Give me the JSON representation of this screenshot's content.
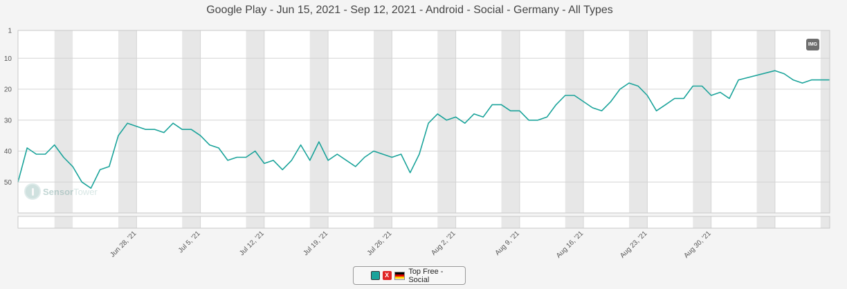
{
  "header": {
    "subtitle": "Google Play - Jun 15, 2021 - Sep 12, 2021 - Android - Social - Germany - All Types"
  },
  "toolbar": {
    "img_label": "IMG"
  },
  "watermark": {
    "brand_a": "Sensor",
    "brand_b": "Tower"
  },
  "legend": {
    "label": "Top Free - Social",
    "remove_label": "X",
    "swatch_color": "#1aa39a"
  },
  "colors": {
    "line": "#1aa39a",
    "grid": "#d4d4d4",
    "band": "#e7e7e7",
    "flag": [
      "#000000",
      "#dd0000",
      "#ffce00"
    ]
  },
  "chart_data": {
    "type": "line",
    "xlabel": "",
    "ylabel": "",
    "y_inverted": true,
    "ylim": [
      1,
      60
    ],
    "yticks": [
      1,
      10,
      20,
      30,
      40,
      50
    ],
    "x_start": "2021-06-15",
    "x_end": "2021-09-12",
    "x_ticks": [
      {
        "date": "2021-06-28",
        "label": "Jun 28, '21"
      },
      {
        "date": "2021-07-05",
        "label": "Jul 5, '21"
      },
      {
        "date": "2021-07-12",
        "label": "Jul 12, '21"
      },
      {
        "date": "2021-07-19",
        "label": "Jul 19, '21"
      },
      {
        "date": "2021-07-26",
        "label": "Jul 26, '21"
      },
      {
        "date": "2021-08-02",
        "label": "Aug 2, '21"
      },
      {
        "date": "2021-08-09",
        "label": "Aug 9, '21"
      },
      {
        "date": "2021-08-16",
        "label": "Aug 16, '21"
      },
      {
        "date": "2021-08-23",
        "label": "Aug 23, '21"
      },
      {
        "date": "2021-08-30",
        "label": "Aug 30, '21"
      }
    ],
    "weekend_bands": true,
    "grid": true,
    "legend_position": "bottom-center",
    "series": [
      {
        "name": "Top Free - Social",
        "x": [
          "2021-06-15",
          "2021-06-16",
          "2021-06-17",
          "2021-06-18",
          "2021-06-19",
          "2021-06-20",
          "2021-06-21",
          "2021-06-22",
          "2021-06-23",
          "2021-06-24",
          "2021-06-25",
          "2021-06-26",
          "2021-06-27",
          "2021-06-28",
          "2021-06-29",
          "2021-06-30",
          "2021-07-01",
          "2021-07-02",
          "2021-07-03",
          "2021-07-04",
          "2021-07-05",
          "2021-07-06",
          "2021-07-07",
          "2021-07-08",
          "2021-07-09",
          "2021-07-10",
          "2021-07-11",
          "2021-07-12",
          "2021-07-13",
          "2021-07-14",
          "2021-07-15",
          "2021-07-16",
          "2021-07-17",
          "2021-07-18",
          "2021-07-19",
          "2021-07-20",
          "2021-07-21",
          "2021-07-22",
          "2021-07-23",
          "2021-07-24",
          "2021-07-25",
          "2021-07-26",
          "2021-07-27",
          "2021-07-28",
          "2021-07-29",
          "2021-07-30",
          "2021-07-31",
          "2021-08-01",
          "2021-08-02",
          "2021-08-03",
          "2021-08-04",
          "2021-08-05",
          "2021-08-06",
          "2021-08-07",
          "2021-08-08",
          "2021-08-09",
          "2021-08-10",
          "2021-08-11",
          "2021-08-12",
          "2021-08-13",
          "2021-08-14",
          "2021-08-15",
          "2021-08-16",
          "2021-08-17",
          "2021-08-18",
          "2021-08-19",
          "2021-08-20",
          "2021-08-21",
          "2021-08-22",
          "2021-08-23",
          "2021-08-24",
          "2021-08-25",
          "2021-08-26",
          "2021-08-27",
          "2021-08-28",
          "2021-08-29",
          "2021-08-30",
          "2021-08-31",
          "2021-09-01",
          "2021-09-02",
          "2021-09-06",
          "2021-09-07",
          "2021-09-08",
          "2021-09-09",
          "2021-09-10",
          "2021-09-11",
          "2021-09-12"
        ],
        "values": [
          50,
          39,
          41,
          41,
          38,
          42,
          45,
          50,
          52,
          46,
          45,
          35,
          31,
          32,
          33,
          33,
          34,
          31,
          33,
          33,
          35,
          38,
          39,
          43,
          42,
          42,
          40,
          44,
          43,
          46,
          43,
          38,
          43,
          37,
          43,
          41,
          43,
          45,
          42,
          40,
          41,
          42,
          41,
          47,
          41,
          31,
          28,
          30,
          29,
          31,
          28,
          29,
          25,
          25,
          27,
          27,
          30,
          30,
          29,
          25,
          22,
          22,
          24,
          26,
          27,
          24,
          20,
          18,
          19,
          22,
          27,
          25,
          23,
          23,
          19,
          19,
          22,
          21,
          23,
          17,
          14,
          15,
          17,
          18,
          17,
          17,
          17
        ]
      }
    ]
  }
}
